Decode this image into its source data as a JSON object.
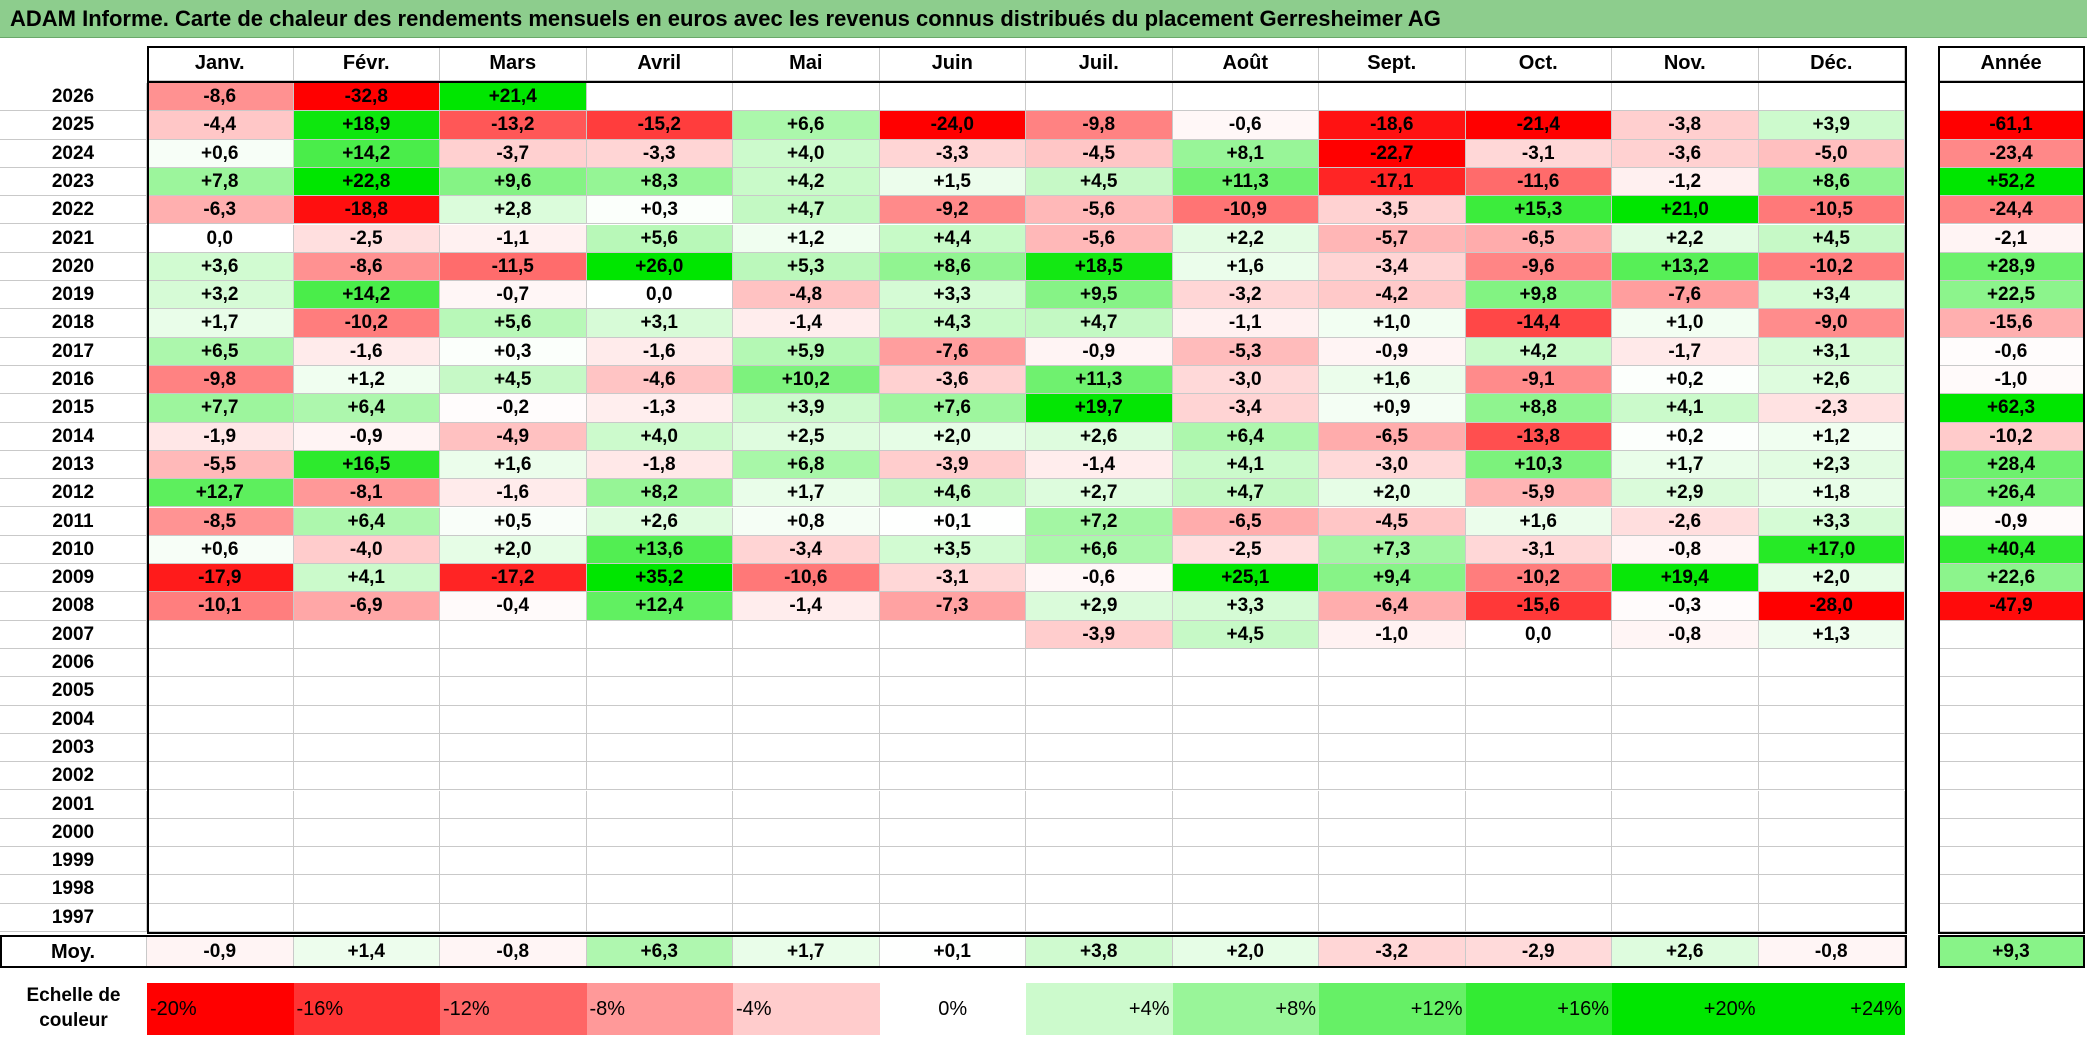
{
  "title": "ADAM Informe. Carte de chaleur des rendements mensuels en euros avec les revenus connus distribués du placement Gerresheimer AG",
  "colors": {
    "title_bg": "#8dcd8d",
    "neg_max": "#ff0000",
    "pos_max": "#00e600",
    "neutral": "#ffffff"
  },
  "chart_data": {
    "type": "heatmap",
    "title": "ADAM Informe. Carte de chaleur des rendements mensuels en euros avec les revenus connus distribués du placement Gerresheimer AG",
    "columns": [
      "Janv.",
      "Févr.",
      "Mars",
      "Avril",
      "Mai",
      "Juin",
      "Juil.",
      "Août",
      "Sept.",
      "Oct.",
      "Nov.",
      "Déc."
    ],
    "year_column_label": "Année",
    "rows": [
      {
        "year": "2026",
        "values": [
          "-8,6",
          "-32,8",
          "+21,4",
          "",
          "",
          "",
          "",
          "",
          "",
          "",
          "",
          ""
        ],
        "annual": ""
      },
      {
        "year": "2025",
        "values": [
          "-4,4",
          "+18,9",
          "-13,2",
          "-15,2",
          "+6,6",
          "-24,0",
          "-9,8",
          "-0,6",
          "-18,6",
          "-21,4",
          "-3,8",
          "+3,9"
        ],
        "annual": "-61,1"
      },
      {
        "year": "2024",
        "values": [
          "+0,6",
          "+14,2",
          "-3,7",
          "-3,3",
          "+4,0",
          "-3,3",
          "-4,5",
          "+8,1",
          "-22,7",
          "-3,1",
          "-3,6",
          "-5,0"
        ],
        "annual": "-23,4"
      },
      {
        "year": "2023",
        "values": [
          "+7,8",
          "+22,8",
          "+9,6",
          "+8,3",
          "+4,2",
          "+1,5",
          "+4,5",
          "+11,3",
          "-17,1",
          "-11,6",
          "-1,2",
          "+8,6"
        ],
        "annual": "+52,2"
      },
      {
        "year": "2022",
        "values": [
          "-6,3",
          "-18,8",
          "+2,8",
          "+0,3",
          "+4,7",
          "-9,2",
          "-5,6",
          "-10,9",
          "-3,5",
          "+15,3",
          "+21,0",
          "-10,5"
        ],
        "annual": "-24,4"
      },
      {
        "year": "2021",
        "values": [
          "0,0",
          "-2,5",
          "-1,1",
          "+5,6",
          "+1,2",
          "+4,4",
          "-5,6",
          "+2,2",
          "-5,7",
          "-6,5",
          "+2,2",
          "+4,5"
        ],
        "annual": "-2,1"
      },
      {
        "year": "2020",
        "values": [
          "+3,6",
          "-8,6",
          "-11,5",
          "+26,0",
          "+5,3",
          "+8,6",
          "+18,5",
          "+1,6",
          "-3,4",
          "-9,6",
          "+13,2",
          "-10,2"
        ],
        "annual": "+28,9"
      },
      {
        "year": "2019",
        "values": [
          "+3,2",
          "+14,2",
          "-0,7",
          "0,0",
          "-4,8",
          "+3,3",
          "+9,5",
          "-3,2",
          "-4,2",
          "+9,8",
          "-7,6",
          "+3,4"
        ],
        "annual": "+22,5"
      },
      {
        "year": "2018",
        "values": [
          "+1,7",
          "-10,2",
          "+5,6",
          "+3,1",
          "-1,4",
          "+4,3",
          "+4,7",
          "-1,1",
          "+1,0",
          "-14,4",
          "+1,0",
          "-9,0"
        ],
        "annual": "-15,6"
      },
      {
        "year": "2017",
        "values": [
          "+6,5",
          "-1,6",
          "+0,3",
          "-1,6",
          "+5,9",
          "-7,6",
          "-0,9",
          "-5,3",
          "-0,9",
          "+4,2",
          "-1,7",
          "+3,1"
        ],
        "annual": "-0,6"
      },
      {
        "year": "2016",
        "values": [
          "-9,8",
          "+1,2",
          "+4,5",
          "-4,6",
          "+10,2",
          "-3,6",
          "+11,3",
          "-3,0",
          "+1,6",
          "-9,1",
          "+0,2",
          "+2,6"
        ],
        "annual": "-1,0"
      },
      {
        "year": "2015",
        "values": [
          "+7,7",
          "+6,4",
          "-0,2",
          "-1,3",
          "+3,9",
          "+7,6",
          "+19,7",
          "-3,4",
          "+0,9",
          "+8,8",
          "+4,1",
          "-2,3"
        ],
        "annual": "+62,3"
      },
      {
        "year": "2014",
        "values": [
          "-1,9",
          "-0,9",
          "-4,9",
          "+4,0",
          "+2,5",
          "+2,0",
          "+2,6",
          "+6,4",
          "-6,5",
          "-13,8",
          "+0,2",
          "+1,2"
        ],
        "annual": "-10,2"
      },
      {
        "year": "2013",
        "values": [
          "-5,5",
          "+16,5",
          "+1,6",
          "-1,8",
          "+6,8",
          "-3,9",
          "-1,4",
          "+4,1",
          "-3,0",
          "+10,3",
          "+1,7",
          "+2,3"
        ],
        "annual": "+28,4"
      },
      {
        "year": "2012",
        "values": [
          "+12,7",
          "-8,1",
          "-1,6",
          "+8,2",
          "+1,7",
          "+4,6",
          "+2,7",
          "+4,7",
          "+2,0",
          "-5,9",
          "+2,9",
          "+1,8"
        ],
        "annual": "+26,4"
      },
      {
        "year": "2011",
        "values": [
          "-8,5",
          "+6,4",
          "+0,5",
          "+2,6",
          "+0,8",
          "+0,1",
          "+7,2",
          "-6,5",
          "-4,5",
          "+1,6",
          "-2,6",
          "+3,3"
        ],
        "annual": "-0,9"
      },
      {
        "year": "2010",
        "values": [
          "+0,6",
          "-4,0",
          "+2,0",
          "+13,6",
          "-3,4",
          "+3,5",
          "+6,6",
          "-2,5",
          "+7,3",
          "-3,1",
          "-0,8",
          "+17,0"
        ],
        "annual": "+40,4"
      },
      {
        "year": "2009",
        "values": [
          "-17,9",
          "+4,1",
          "-17,2",
          "+35,2",
          "-10,6",
          "-3,1",
          "-0,6",
          "+25,1",
          "+9,4",
          "-10,2",
          "+19,4",
          "+2,0"
        ],
        "annual": "+22,6"
      },
      {
        "year": "2008",
        "values": [
          "-10,1",
          "-6,9",
          "-0,4",
          "+12,4",
          "-1,4",
          "-7,3",
          "+2,9",
          "+3,3",
          "-6,4",
          "-15,6",
          "-0,3",
          "-28,0"
        ],
        "annual": "-47,9"
      },
      {
        "year": "2007",
        "values": [
          "",
          "",
          "",
          "",
          "",
          "",
          "-3,9",
          "+4,5",
          "-1,0",
          "0,0",
          "-0,8",
          "+1,3"
        ],
        "annual": ""
      },
      {
        "year": "2006",
        "values": [
          "",
          "",
          "",
          "",
          "",
          "",
          "",
          "",
          "",
          "",
          "",
          ""
        ],
        "annual": ""
      },
      {
        "year": "2005",
        "values": [
          "",
          "",
          "",
          "",
          "",
          "",
          "",
          "",
          "",
          "",
          "",
          ""
        ],
        "annual": ""
      },
      {
        "year": "2004",
        "values": [
          "",
          "",
          "",
          "",
          "",
          "",
          "",
          "",
          "",
          "",
          "",
          ""
        ],
        "annual": ""
      },
      {
        "year": "2003",
        "values": [
          "",
          "",
          "",
          "",
          "",
          "",
          "",
          "",
          "",
          "",
          "",
          ""
        ],
        "annual": ""
      },
      {
        "year": "2002",
        "values": [
          "",
          "",
          "",
          "",
          "",
          "",
          "",
          "",
          "",
          "",
          "",
          ""
        ],
        "annual": ""
      },
      {
        "year": "2001",
        "values": [
          "",
          "",
          "",
          "",
          "",
          "",
          "",
          "",
          "",
          "",
          "",
          ""
        ],
        "annual": ""
      },
      {
        "year": "2000",
        "values": [
          "",
          "",
          "",
          "",
          "",
          "",
          "",
          "",
          "",
          "",
          "",
          ""
        ],
        "annual": ""
      },
      {
        "year": "1999",
        "values": [
          "",
          "",
          "",
          "",
          "",
          "",
          "",
          "",
          "",
          "",
          "",
          ""
        ],
        "annual": ""
      },
      {
        "year": "1998",
        "values": [
          "",
          "",
          "",
          "",
          "",
          "",
          "",
          "",
          "",
          "",
          "",
          ""
        ],
        "annual": ""
      },
      {
        "year": "1997",
        "values": [
          "",
          "",
          "",
          "",
          "",
          "",
          "",
          "",
          "",
          "",
          "",
          ""
        ],
        "annual": ""
      }
    ],
    "average": {
      "label": "Moy.",
      "values": [
        "-0,9",
        "+1,4",
        "-0,8",
        "+6,3",
        "+1,7",
        "+0,1",
        "+3,8",
        "+2,0",
        "-3,2",
        "-2,9",
        "+2,6",
        "-0,8"
      ],
      "annual": "+9,3"
    },
    "legend": {
      "label_line1": "Echelle de",
      "label_line2": "couleur",
      "stops": [
        "-20%",
        "-16%",
        "-12%",
        "-8%",
        "-4%",
        "0%",
        "+4%",
        "+8%",
        "+12%",
        "+16%",
        "+20%",
        "+24%"
      ]
    }
  }
}
